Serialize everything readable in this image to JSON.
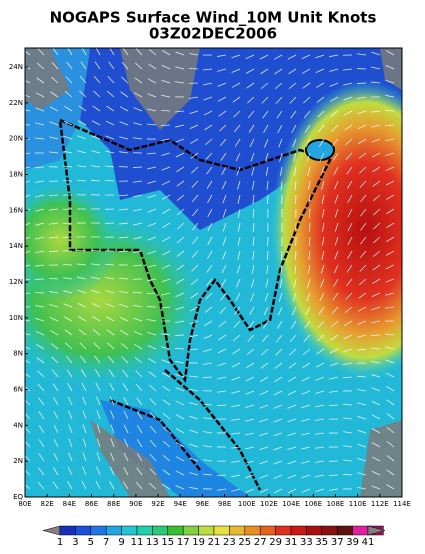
{
  "header": {
    "title": "NOGAPS Surface Wind_10M Unit Knots",
    "subtitle": "03Z02DEC2006"
  },
  "map": {
    "lat_ticks": [
      "EQ",
      "2N",
      "4N",
      "6N",
      "8N",
      "10N",
      "12N",
      "14N",
      "16N",
      "18N",
      "20N",
      "22N",
      "24N"
    ],
    "lon_ticks": [
      "80E",
      "82E",
      "84E",
      "86E",
      "88E",
      "90E",
      "92E",
      "94E",
      "96E",
      "98E",
      "100E",
      "102E",
      "104E",
      "106E",
      "108E",
      "110E",
      "112E",
      "114E"
    ]
  },
  "colorbar": {
    "labels": [
      1,
      3,
      5,
      7,
      9,
      11,
      13,
      15,
      17,
      19,
      21,
      23,
      25,
      27,
      29,
      31,
      33,
      35,
      37,
      39,
      41
    ],
    "colors": [
      "#808080",
      "#1a2fb8",
      "#1e4fd8",
      "#1f78e6",
      "#22a6e0",
      "#22c6d2",
      "#22d0a8",
      "#2ac878",
      "#38c030",
      "#80d040",
      "#c0dc40",
      "#e6e040",
      "#e6b830",
      "#e69020",
      "#e66020",
      "#e03020",
      "#c81818",
      "#a81010",
      "#881010",
      "#601010",
      "#e020a0",
      "#a01060",
      "#808080"
    ]
  }
}
